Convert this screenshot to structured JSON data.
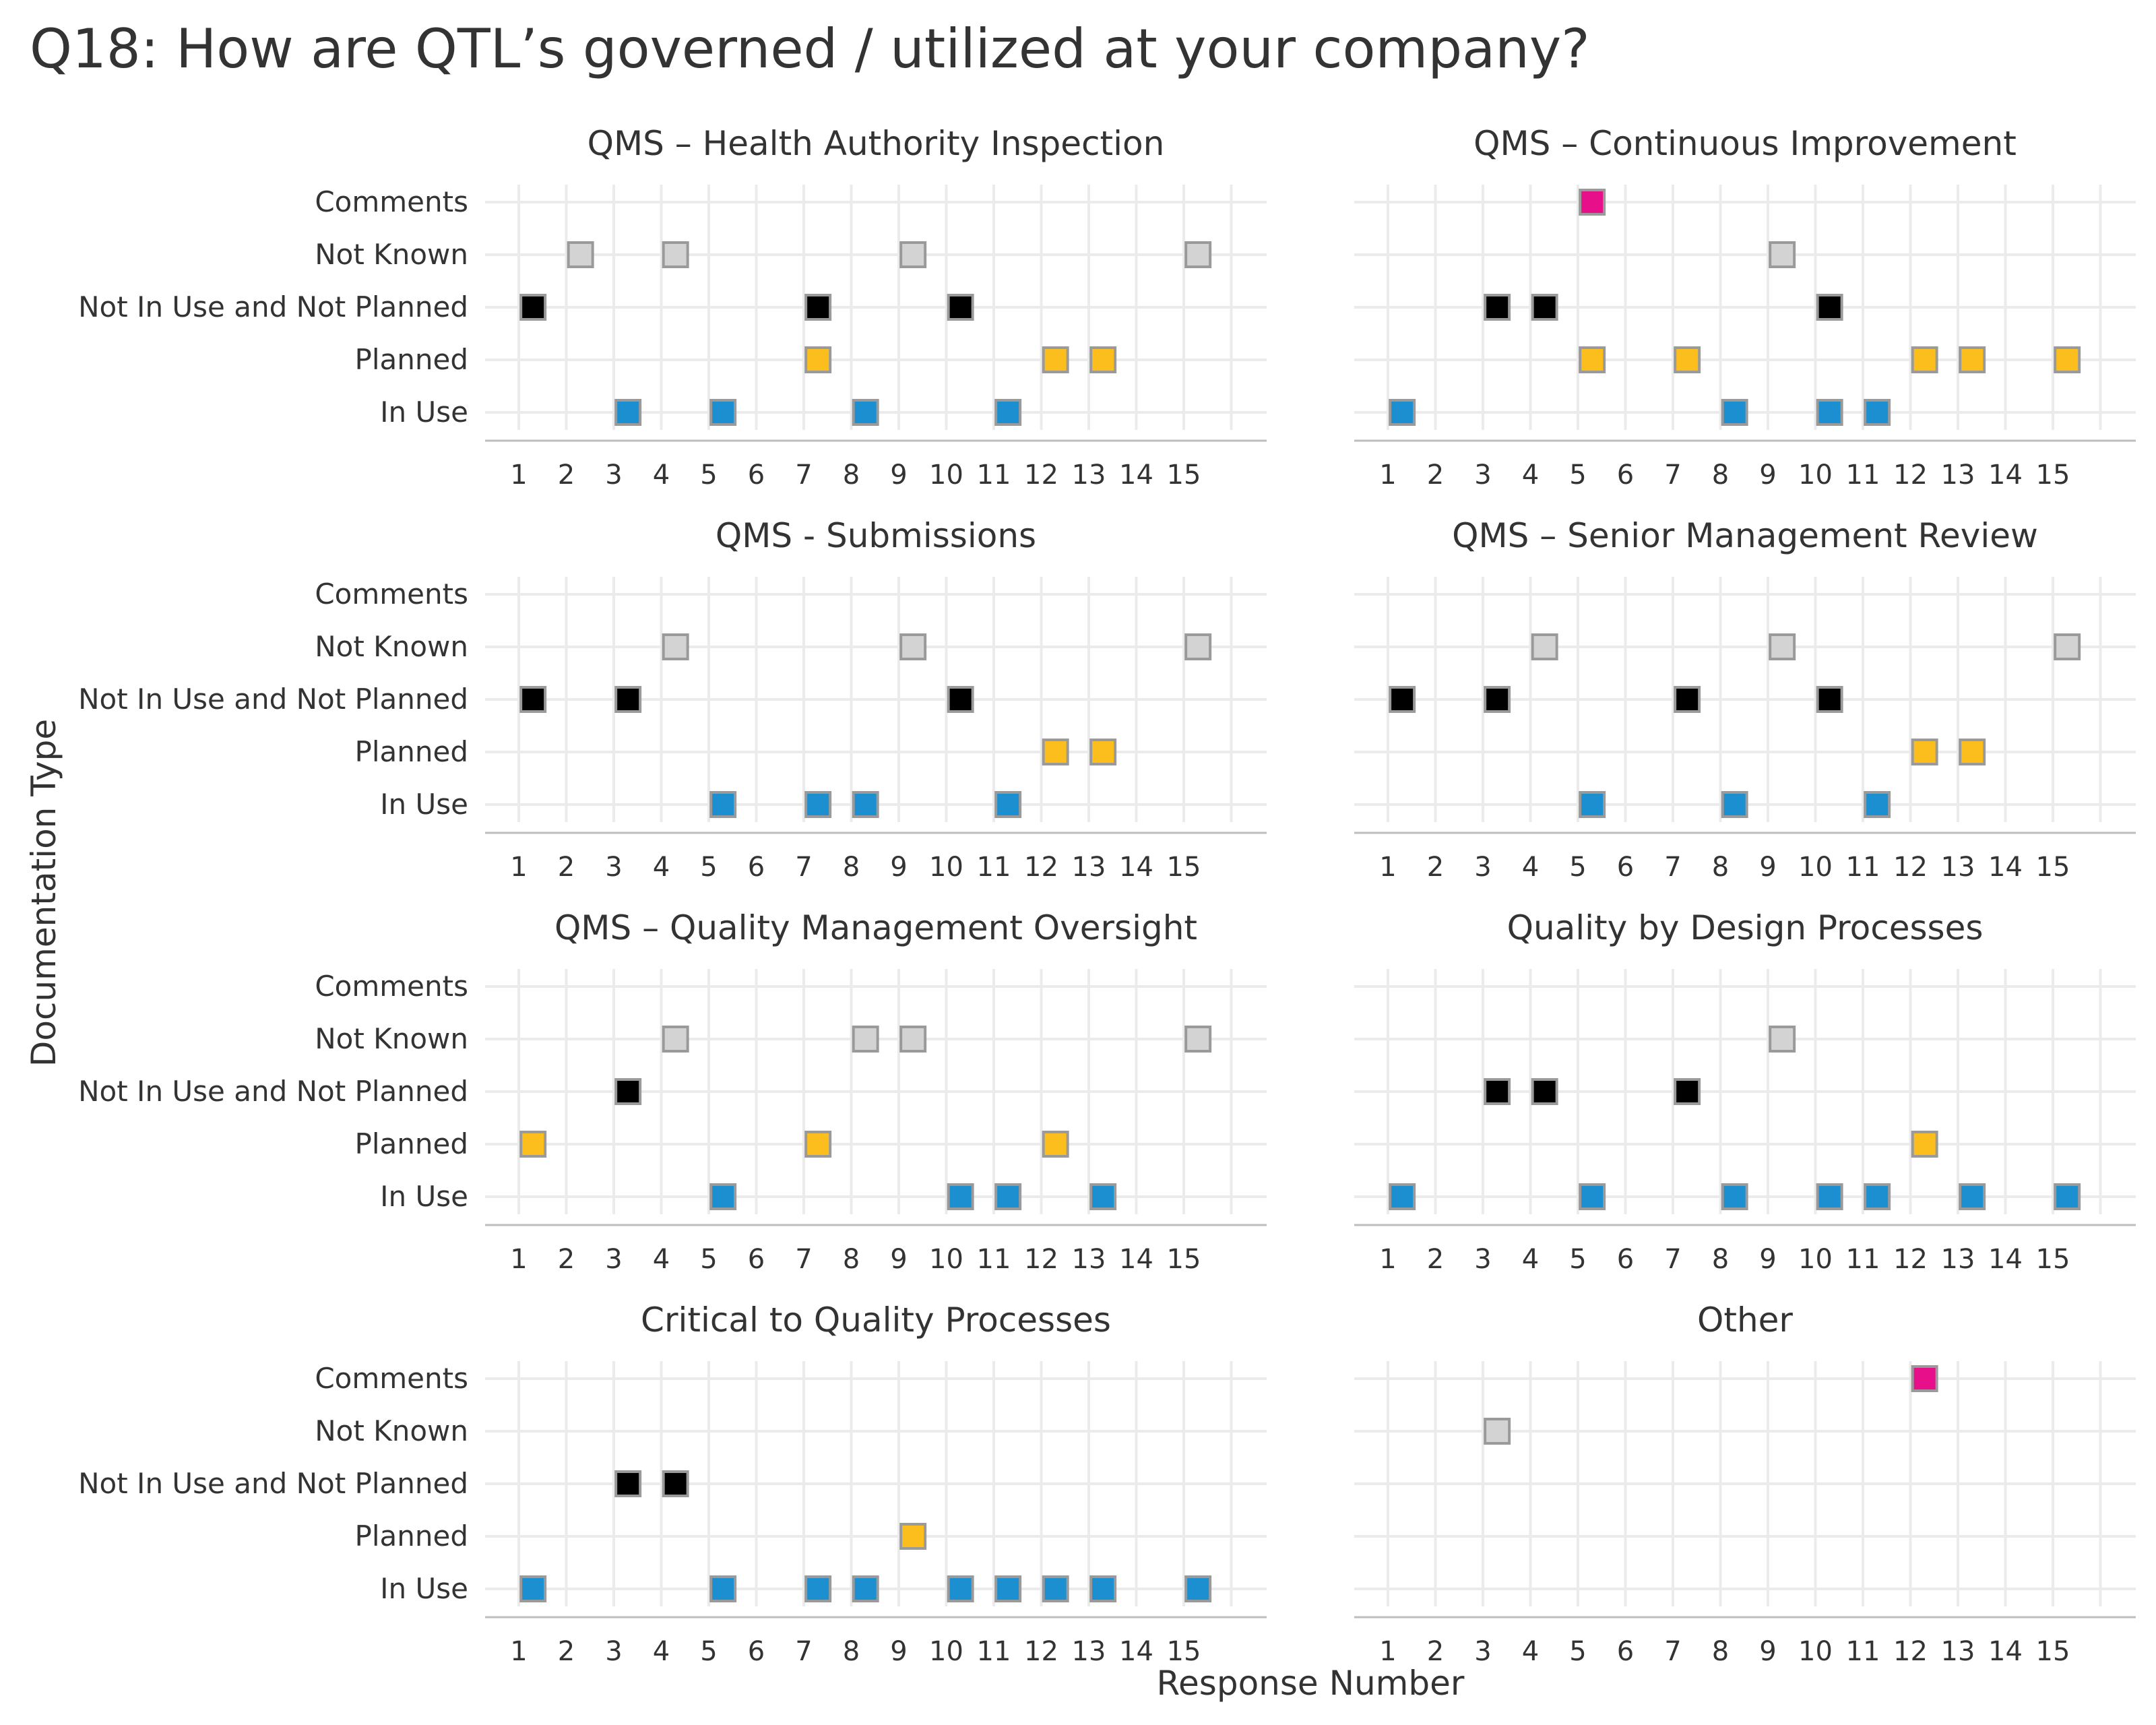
{
  "chart_data": {
    "type": "scatter",
    "title": "Q18: How are QTL’s governed / utilized at your company?",
    "xlabel": "Response Number",
    "ylabel": "Documentation Type",
    "x_ticks": [
      1,
      2,
      3,
      4,
      5,
      6,
      7,
      8,
      9,
      10,
      11,
      12,
      13,
      14,
      15
    ],
    "categories": [
      "In Use",
      "Planned",
      "Not In Use and Not Planned",
      "Not Known",
      "Comments"
    ],
    "category_colors": {
      "In Use": "#1b8fcf",
      "Planned": "#fbbe1d",
      "Not In Use and Not Planned": "#000000",
      "Not Known": "#d3d3d3",
      "Comments": "#e8108a"
    },
    "grid": true,
    "panels": [
      {
        "title": "QMS – Health Authority Inspection",
        "points": {
          "Comments": [],
          "Not Known": [
            2,
            4,
            9,
            15
          ],
          "Not In Use and Not Planned": [
            1,
            7,
            10
          ],
          "Planned": [
            7,
            12,
            13
          ],
          "In Use": [
            3,
            5,
            8,
            11
          ]
        }
      },
      {
        "title": "QMS – Continuous Improvement",
        "points": {
          "Comments": [
            5
          ],
          "Not Known": [
            9
          ],
          "Not In Use and Not Planned": [
            3,
            4,
            10
          ],
          "Planned": [
            5,
            7,
            12,
            13,
            15
          ],
          "In Use": [
            1,
            8,
            10,
            11
          ]
        }
      },
      {
        "title": "QMS - Submissions",
        "points": {
          "Comments": [],
          "Not Known": [
            4,
            9,
            15
          ],
          "Not In Use and Not Planned": [
            1,
            3,
            10
          ],
          "Planned": [
            12,
            13
          ],
          "In Use": [
            5,
            7,
            8,
            11
          ]
        }
      },
      {
        "title": "QMS – Senior Management Review",
        "points": {
          "Comments": [],
          "Not Known": [
            4,
            9,
            15
          ],
          "Not In Use and Not Planned": [
            1,
            3,
            7,
            10
          ],
          "Planned": [
            12,
            13
          ],
          "In Use": [
            5,
            8,
            11
          ]
        }
      },
      {
        "title": "QMS – Quality Management Oversight",
        "points": {
          "Comments": [],
          "Not Known": [
            4,
            8,
            9,
            15
          ],
          "Not In Use and Not Planned": [
            3
          ],
          "Planned": [
            1,
            7,
            12
          ],
          "In Use": [
            5,
            10,
            11,
            13
          ]
        }
      },
      {
        "title": "Quality by Design Processes",
        "points": {
          "Comments": [],
          "Not Known": [
            9
          ],
          "Not In Use and Not Planned": [
            3,
            4,
            7
          ],
          "Planned": [
            12
          ],
          "In Use": [
            1,
            5,
            8,
            10,
            11,
            13,
            15
          ]
        }
      },
      {
        "title": "Critical to Quality Processes",
        "points": {
          "Comments": [],
          "Not Known": [],
          "Not In Use and Not Planned": [
            3,
            4
          ],
          "Planned": [
            9
          ],
          "In Use": [
            1,
            5,
            7,
            8,
            10,
            11,
            12,
            13,
            15
          ]
        }
      },
      {
        "title": "Other",
        "points": {
          "Comments": [
            12
          ],
          "Not Known": [
            3
          ],
          "Not In Use and Not Planned": [],
          "Planned": [],
          "In Use": []
        }
      }
    ]
  }
}
